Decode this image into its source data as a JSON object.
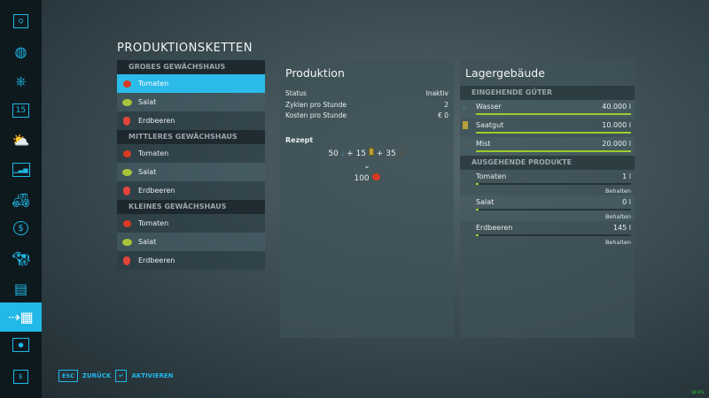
{
  "sidebar": {
    "items": [
      {
        "name": "q-key",
        "label": "Q"
      },
      {
        "name": "map",
        "icon": "map-icon"
      },
      {
        "name": "vehicles",
        "icon": "steering-wheel-icon"
      },
      {
        "name": "calendar",
        "label": "15",
        "icon": "calendar-icon"
      },
      {
        "name": "weather",
        "icon": "weather-icon"
      },
      {
        "name": "prices",
        "icon": "chart-icon"
      },
      {
        "name": "garage",
        "icon": "tractor-icon"
      },
      {
        "name": "finances",
        "icon": "dollar-icon"
      },
      {
        "name": "animals",
        "icon": "cow-icon"
      },
      {
        "name": "contracts",
        "icon": "contracts-icon"
      },
      {
        "name": "production",
        "icon": "production-chain-icon",
        "selected": true
      },
      {
        "name": "help",
        "icon": "help-icon"
      },
      {
        "name": "e-key",
        "label": "E"
      }
    ]
  },
  "title": "PRODUKTIONSKETTEN",
  "groups": [
    {
      "name": "GROßES GEWÄCHSHAUS",
      "items": [
        {
          "label": "Tomaten",
          "icon": "tomato",
          "selected": true
        },
        {
          "label": "Salat",
          "icon": "lettuce"
        },
        {
          "label": "Erdbeeren",
          "icon": "strawberry"
        }
      ]
    },
    {
      "name": "MITTLERES GEWÄCHSHAUS",
      "items": [
        {
          "label": "Tomaten",
          "icon": "tomato"
        },
        {
          "label": "Salat",
          "icon": "lettuce"
        },
        {
          "label": "Erdbeeren",
          "icon": "strawberry"
        }
      ]
    },
    {
      "name": "KLEINES GEWÄCHSHAUS",
      "items": [
        {
          "label": "Tomaten",
          "icon": "tomato"
        },
        {
          "label": "Salat",
          "icon": "lettuce"
        },
        {
          "label": "Erdbeeren",
          "icon": "strawberry"
        }
      ]
    }
  ],
  "production": {
    "title": "Produktion",
    "rows": [
      {
        "k": "Status",
        "v": "Inaktiv"
      },
      {
        "k": "Zyklen pro Stunde",
        "v": "2"
      },
      {
        "k": "Kosten pro Stunde",
        "v": "€ 0"
      }
    ],
    "recipe_label": "Rezept",
    "inputs": [
      "50",
      "15",
      "35"
    ],
    "plus": "+",
    "output": "100"
  },
  "storage": {
    "title": "Lagergebäude",
    "incoming_label": "EINGEHENDE GÜTER",
    "incoming": [
      {
        "label": "Wasser",
        "value": "40.000 l",
        "fill": 1.0,
        "icon": "water-icon"
      },
      {
        "label": "Saatgut",
        "value": "10.000 l",
        "fill": 1.0,
        "icon": "seeds-icon"
      },
      {
        "label": "Mist",
        "value": "20.000 l",
        "fill": 1.0,
        "icon": "manure-icon"
      }
    ],
    "outgoing_label": "AUSGEHENDE PRODUKTE",
    "outgoing": [
      {
        "label": "Tomaten",
        "value": "1 l",
        "fill": 0.01,
        "mode": "Behalten"
      },
      {
        "label": "Salat",
        "value": "0 l",
        "fill": 0.01,
        "mode": "Behalten"
      },
      {
        "label": "Erdbeeren",
        "value": "145 l",
        "fill": 0.01,
        "mode": "Behalten"
      }
    ]
  },
  "footer": {
    "back_key": "ESC",
    "back": "ZURÜCK",
    "activate_key": "↵",
    "activate": "AKTIVIEREN"
  },
  "fps": "60 FPS",
  "colors": {
    "accent": "#22b8e8",
    "bar": "#9ccc2a"
  }
}
